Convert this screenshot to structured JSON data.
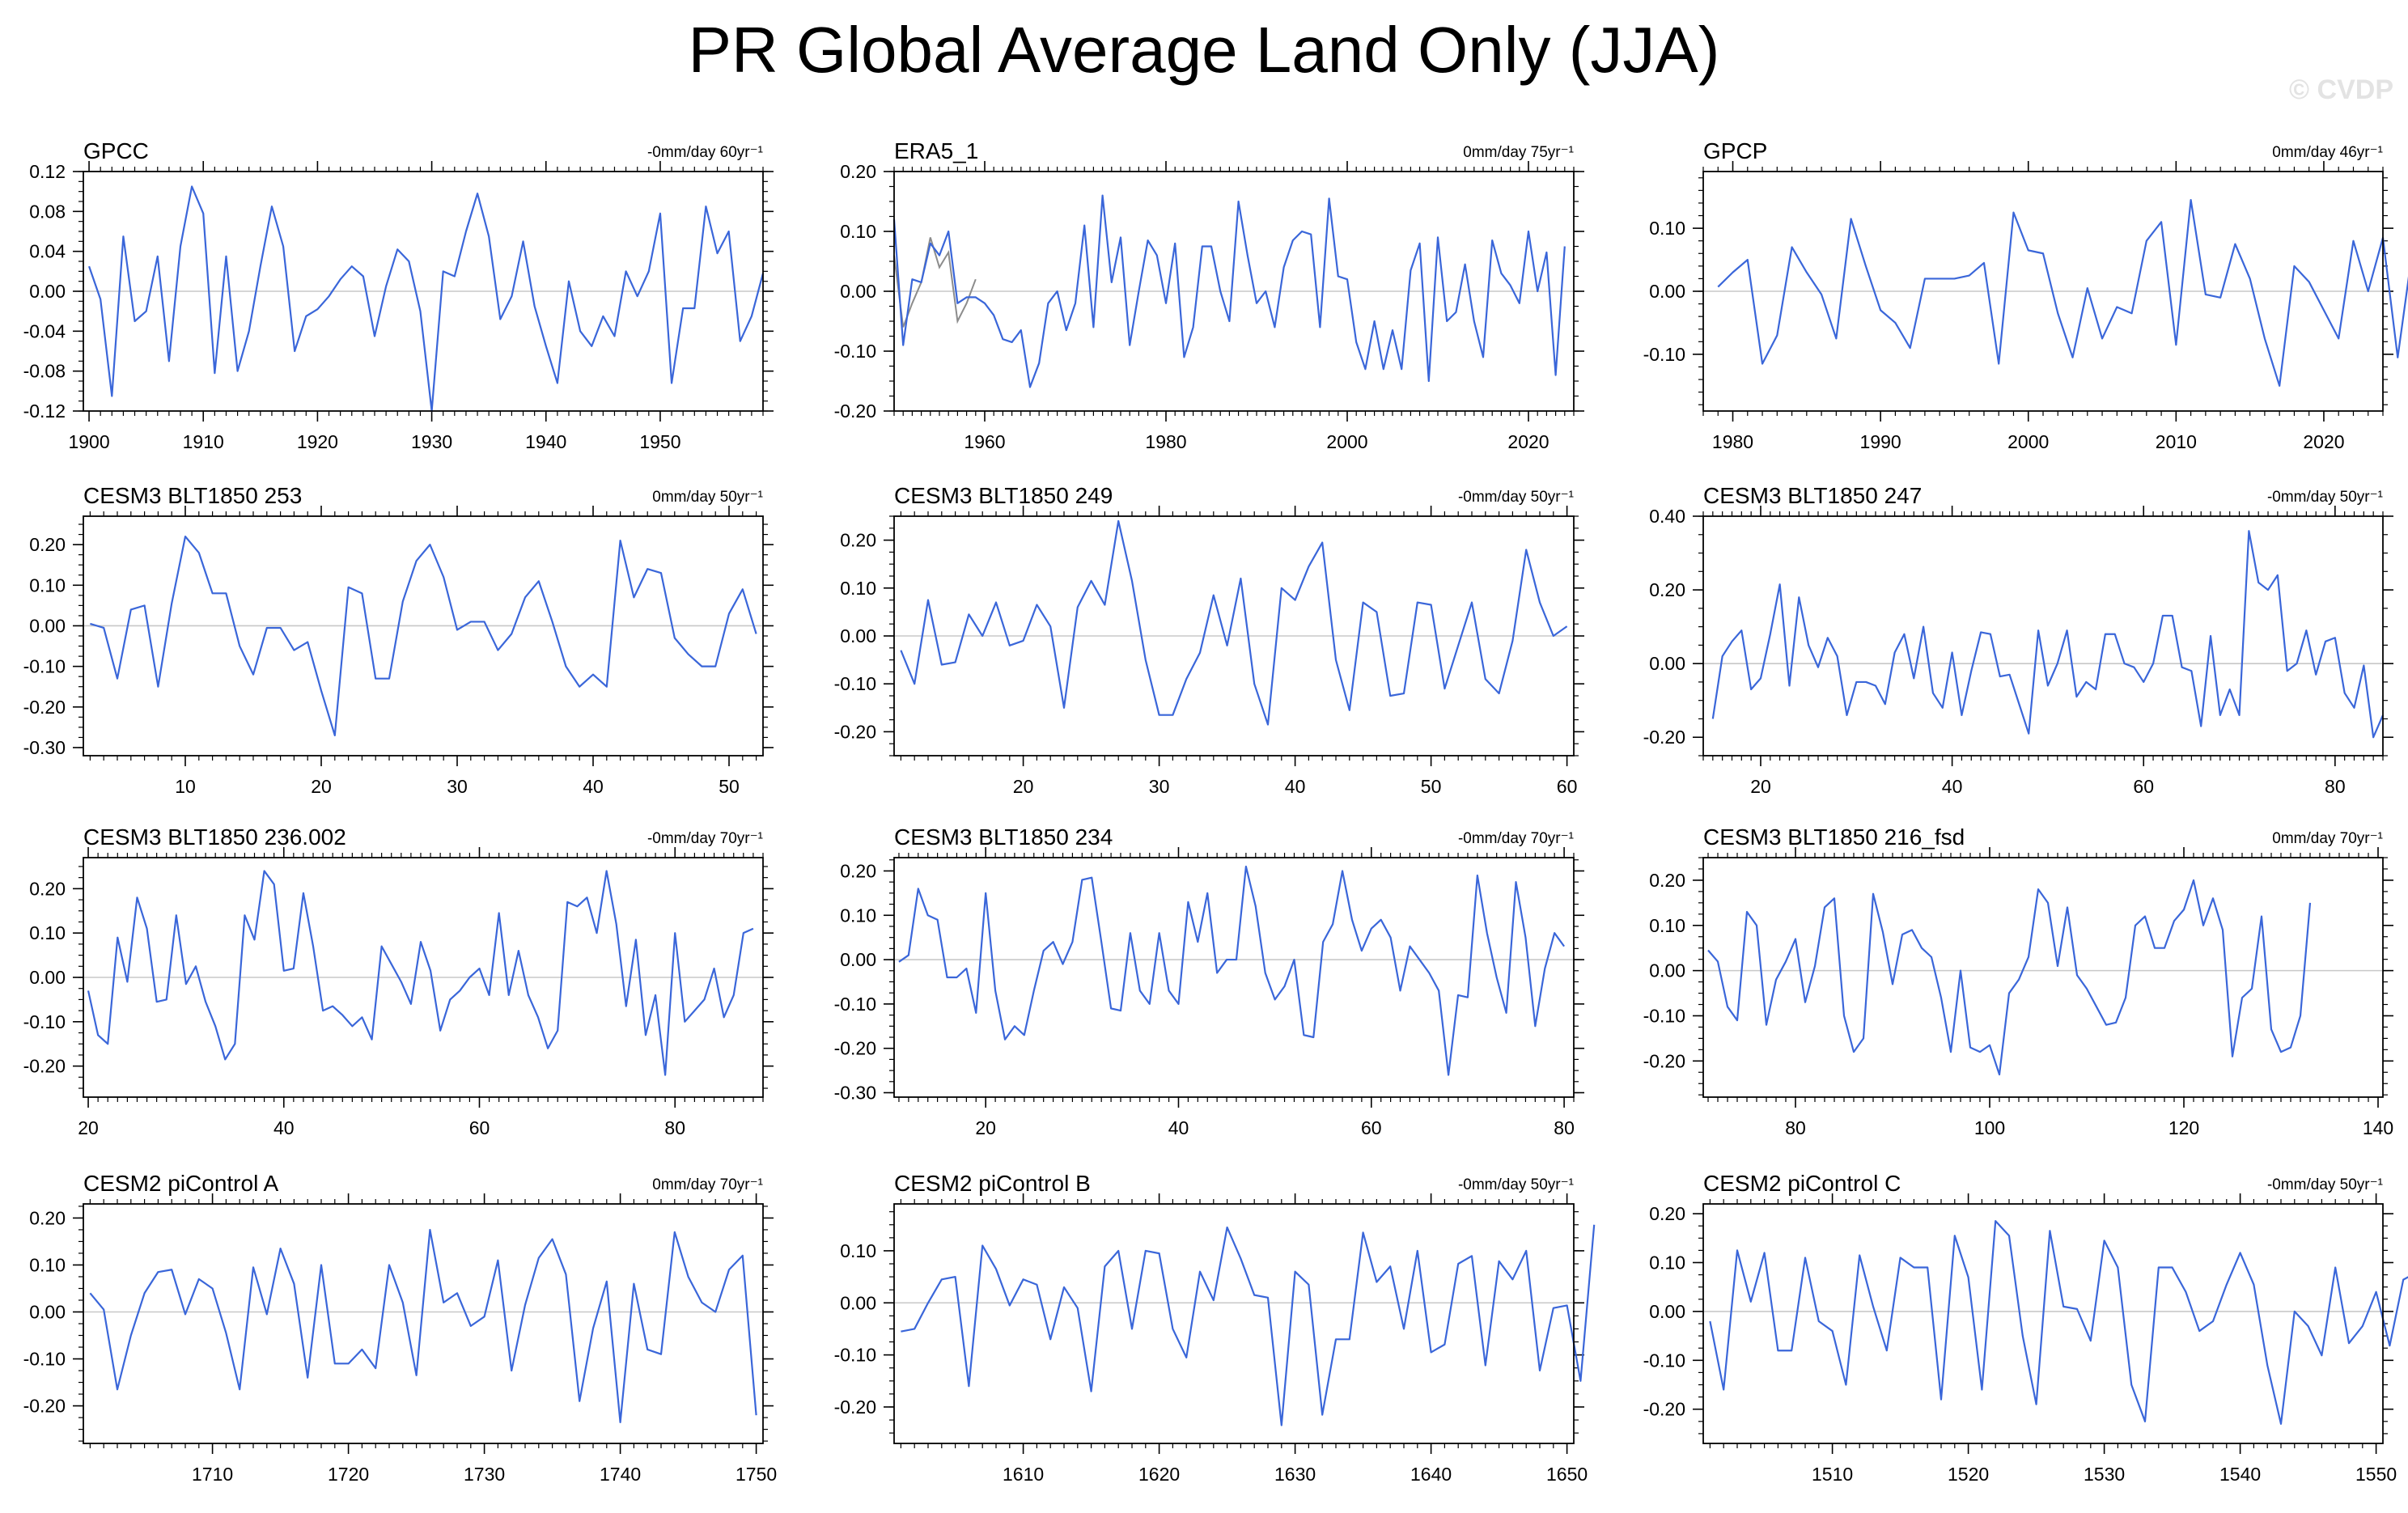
{
  "figure": {
    "title": "PR Global Average Land Only (JJA)",
    "watermark": "© CVDP",
    "colors": {
      "series": "#3a66d9",
      "overlay": "#8c8c8c",
      "zero_line": "#c8c8c8",
      "axis": "#000000"
    }
  },
  "chart_data": [
    {
      "type": "line",
      "title": "GPCC",
      "trend_label": "-0mm/day 60yr⁻¹",
      "x_start": 1900,
      "x_step": 1,
      "xlim": [
        1899.5,
        1959
      ],
      "ylim": [
        -0.12,
        0.12
      ],
      "xticks": [
        1900,
        1910,
        1920,
        1930,
        1940,
        1950
      ],
      "yticks": [
        -0.12,
        -0.08,
        -0.04,
        0.0,
        0.04,
        0.08,
        0.12
      ],
      "ydecimals": 2,
      "yminor": 0.01,
      "xlabel": "",
      "ylabel": "",
      "values": [
        0.025,
        -0.008,
        -0.105,
        0.055,
        -0.03,
        -0.02,
        0.035,
        -0.07,
        0.045,
        0.105,
        0.078,
        -0.082,
        0.035,
        -0.08,
        -0.04,
        0.025,
        0.085,
        0.045,
        -0.06,
        -0.025,
        -0.018,
        -0.005,
        0.012,
        0.025,
        0.015,
        -0.045,
        0.005,
        0.042,
        0.03,
        -0.02,
        -0.12,
        0.02,
        0.015,
        0.06,
        0.098,
        0.055,
        -0.028,
        -0.005,
        0.05,
        -0.015,
        -0.055,
        -0.092,
        0.01,
        -0.04,
        -0.055,
        -0.025,
        -0.045,
        0.02,
        -0.005,
        0.02,
        0.078,
        -0.092,
        -0.017,
        -0.017,
        0.085,
        0.038,
        0.06,
        -0.05,
        -0.025,
        0.018
      ]
    },
    {
      "type": "line",
      "title": "ERA5_1",
      "trend_label": "0mm/day 75yr⁻¹",
      "x_start": 1950,
      "x_step": 1,
      "xlim": [
        1950,
        2025
      ],
      "ylim": [
        -0.2,
        0.2
      ],
      "xticks": [
        1960,
        1980,
        2000,
        2020
      ],
      "yticks": [
        -0.2,
        -0.1,
        0.0,
        0.1,
        0.2
      ],
      "ydecimals": 2,
      "yminor": 0.025,
      "xlabel": "",
      "ylabel": "",
      "values": [
        0.12,
        -0.09,
        0.02,
        0.015,
        0.08,
        0.06,
        0.1,
        -0.02,
        -0.01,
        -0.01,
        -0.02,
        -0.04,
        -0.08,
        -0.085,
        -0.065,
        -0.16,
        -0.12,
        -0.02,
        0.0,
        -0.065,
        -0.02,
        0.11,
        -0.06,
        0.16,
        0.015,
        0.09,
        -0.09,
        0.0,
        0.085,
        0.06,
        -0.02,
        0.08,
        -0.11,
        -0.06,
        0.075,
        0.075,
        0.0,
        -0.05,
        0.15,
        0.06,
        -0.02,
        0.0,
        -0.06,
        0.04,
        0.085,
        0.1,
        0.095,
        -0.06,
        0.155,
        0.025,
        0.02,
        -0.085,
        -0.13,
        -0.05,
        -0.13,
        -0.065,
        -0.13,
        0.035,
        0.08,
        -0.15,
        0.09,
        -0.05,
        -0.035,
        0.045,
        -0.05,
        -0.11,
        0.085,
        0.03,
        0.01,
        -0.02,
        0.1,
        0.0,
        0.065,
        -0.14,
        0.075
      ],
      "overlay": {
        "x_start": 1950,
        "values": [
          0.06,
          -0.06,
          -0.02,
          0.015,
          0.09,
          0.04,
          0.065,
          -0.05,
          -0.02,
          0.02
        ]
      }
    },
    {
      "type": "line",
      "title": "GPCP",
      "trend_label": "0mm/day 46yr⁻¹",
      "x_start": 1979,
      "x_step": 1,
      "xlim": [
        1978,
        2024
      ],
      "ylim": [
        -0.19,
        0.19
      ],
      "xticks": [
        1980,
        1990,
        2000,
        2010,
        2020
      ],
      "yticks": [
        -0.1,
        0.0,
        0.1
      ],
      "ydecimals": 2,
      "yminor": 0.02,
      "xlabel": "",
      "ylabel": "",
      "values": [
        0.007,
        0.03,
        0.05,
        -0.115,
        -0.07,
        0.07,
        0.03,
        -0.005,
        -0.075,
        0.115,
        0.04,
        -0.03,
        -0.05,
        -0.09,
        0.02,
        0.02,
        0.02,
        0.025,
        0.045,
        -0.115,
        0.125,
        0.065,
        0.06,
        -0.035,
        -0.105,
        0.005,
        -0.075,
        -0.025,
        -0.035,
        0.08,
        0.11,
        -0.085,
        0.145,
        -0.005,
        -0.01,
        0.075,
        0.02,
        -0.075,
        -0.15,
        0.04,
        0.015,
        -0.03,
        -0.075,
        0.08,
        0.0,
        0.085,
        -0.105,
        0.065
      ]
    },
    {
      "type": "line",
      "title": "CESM3 BLT1850 253",
      "trend_label": "0mm/day 50yr⁻¹",
      "x_start": 3,
      "x_step": 1,
      "xlim": [
        2.5,
        52.5
      ],
      "ylim": [
        -0.32,
        0.27
      ],
      "xticks": [
        10,
        20,
        30,
        40,
        50
      ],
      "yticks": [
        -0.3,
        -0.2,
        -0.1,
        0.0,
        0.1,
        0.2
      ],
      "ydecimals": 2,
      "yminor": 0.025,
      "xlabel": "",
      "ylabel": "",
      "values": [
        0.005,
        -0.005,
        -0.13,
        0.04,
        0.05,
        -0.15,
        0.055,
        0.22,
        0.18,
        0.08,
        0.08,
        -0.05,
        -0.12,
        -0.005,
        -0.005,
        -0.06,
        -0.04,
        -0.16,
        -0.27,
        0.095,
        0.08,
        -0.13,
        -0.13,
        0.06,
        0.16,
        0.2,
        0.12,
        -0.01,
        0.01,
        0.01,
        -0.06,
        -0.02,
        0.07,
        0.11,
        0.01,
        -0.1,
        -0.15,
        -0.12,
        -0.15,
        0.21,
        0.07,
        0.14,
        0.13,
        -0.03,
        -0.07,
        -0.1,
        -0.1,
        0.03,
        0.09,
        -0.02
      ]
    },
    {
      "type": "line",
      "title": "CESM3 BLT1850 249",
      "trend_label": "-0mm/day 50yr⁻¹",
      "x_start": 11,
      "x_step": 1,
      "xlim": [
        10.5,
        60.5
      ],
      "ylim": [
        -0.25,
        0.25
      ],
      "xticks": [
        20,
        30,
        40,
        50,
        60
      ],
      "yticks": [
        -0.2,
        -0.1,
        0.0,
        0.1,
        0.2
      ],
      "ydecimals": 2,
      "yminor": 0.025,
      "xlabel": "",
      "ylabel": "",
      "values": [
        -0.03,
        -0.1,
        0.075,
        -0.06,
        -0.055,
        0.045,
        0.0,
        0.07,
        -0.02,
        -0.01,
        0.065,
        0.02,
        -0.15,
        0.06,
        0.115,
        0.065,
        0.24,
        0.115,
        -0.05,
        -0.165,
        -0.165,
        -0.09,
        -0.035,
        0.085,
        -0.02,
        0.12,
        -0.1,
        -0.185,
        0.1,
        0.075,
        0.145,
        0.195,
        -0.05,
        -0.155,
        0.07,
        0.05,
        -0.125,
        -0.12,
        0.07,
        0.065,
        -0.11,
        -0.02,
        0.07,
        -0.09,
        -0.12,
        -0.01,
        0.18,
        0.07,
        0.0,
        0.02
      ]
    },
    {
      "type": "line",
      "title": "CESM3 BLT1850 247",
      "trend_label": "-0mm/day 50yr⁻¹",
      "x_start": 15,
      "x_step": 1,
      "xlim": [
        14,
        85
      ],
      "ylim": [
        -0.25,
        0.4
      ],
      "xticks": [
        20,
        40,
        60,
        80
      ],
      "yticks": [
        -0.2,
        0.0,
        0.2,
        0.4
      ],
      "ydecimals": 2,
      "yminor": 0.05,
      "xlabel": "",
      "ylabel": "",
      "values": [
        -0.15,
        0.02,
        0.06,
        0.09,
        -0.07,
        -0.04,
        0.08,
        0.215,
        -0.06,
        0.18,
        0.05,
        -0.01,
        0.07,
        0.02,
        -0.14,
        -0.05,
        -0.05,
        -0.06,
        -0.11,
        0.03,
        0.08,
        -0.04,
        0.1,
        -0.08,
        -0.12,
        0.03,
        -0.14,
        -0.02,
        0.085,
        0.08,
        -0.035,
        -0.03,
        -0.11,
        -0.19,
        0.09,
        -0.06,
        0.0,
        0.09,
        -0.09,
        -0.05,
        -0.07,
        0.08,
        0.08,
        0.0,
        -0.01,
        -0.05,
        0.0,
        0.13,
        0.13,
        -0.01,
        -0.02,
        -0.17,
        0.075,
        -0.14,
        -0.07,
        -0.14,
        0.36,
        0.22,
        0.2,
        0.24,
        -0.02,
        0.0,
        0.09,
        -0.03,
        0.06,
        0.07,
        -0.08,
        -0.12,
        -0.005,
        -0.2,
        -0.14
      ]
    },
    {
      "type": "line",
      "title": "CESM3 BLT1850 236.002",
      "trend_label": "-0mm/day 70yr⁻¹",
      "x_start": 20,
      "x_step": 1,
      "xlim": [
        19.5,
        89
      ],
      "ylim": [
        -0.27,
        0.27
      ],
      "xticks": [
        20,
        40,
        60,
        80
      ],
      "yticks": [
        -0.2,
        -0.1,
        0.0,
        0.1,
        0.2
      ],
      "ydecimals": 2,
      "yminor": 0.025,
      "xlabel": "",
      "ylabel": "",
      "values": [
        -0.03,
        -0.13,
        -0.15,
        0.09,
        -0.01,
        0.18,
        0.11,
        -0.055,
        -0.05,
        0.14,
        -0.015,
        0.025,
        -0.055,
        -0.11,
        -0.185,
        -0.15,
        0.14,
        0.085,
        0.24,
        0.21,
        0.015,
        0.02,
        0.19,
        0.07,
        -0.075,
        -0.065,
        -0.085,
        -0.11,
        -0.09,
        -0.14,
        0.07,
        0.03,
        -0.01,
        -0.06,
        0.08,
        0.015,
        -0.12,
        -0.05,
        -0.03,
        0.0,
        0.02,
        -0.04,
        0.145,
        -0.04,
        0.06,
        -0.04,
        -0.09,
        -0.16,
        -0.12,
        0.17,
        0.16,
        0.18,
        0.1,
        0.24,
        0.12,
        -0.065,
        0.085,
        -0.13,
        -0.04,
        -0.22,
        0.1,
        -0.1,
        -0.075,
        -0.05,
        0.02,
        -0.09,
        -0.04,
        0.1,
        0.11
      ]
    },
    {
      "type": "line",
      "title": "CESM3 BLT1850 234",
      "trend_label": "-0mm/day 70yr⁻¹",
      "x_start": 11,
      "x_step": 1,
      "xlim": [
        10.5,
        81
      ],
      "ylim": [
        -0.31,
        0.23
      ],
      "xticks": [
        20,
        40,
        60,
        80
      ],
      "yticks": [
        -0.3,
        -0.2,
        -0.1,
        0.0,
        0.1,
        0.2
      ],
      "ydecimals": 2,
      "yminor": 0.025,
      "xlabel": "",
      "ylabel": "",
      "values": [
        -0.005,
        0.01,
        0.16,
        0.1,
        0.09,
        -0.04,
        -0.04,
        -0.02,
        -0.12,
        0.15,
        -0.07,
        -0.18,
        -0.15,
        -0.17,
        -0.07,
        0.02,
        0.04,
        -0.01,
        0.04,
        0.18,
        0.185,
        0.04,
        -0.11,
        -0.115,
        0.06,
        -0.07,
        -0.1,
        0.06,
        -0.07,
        -0.1,
        0.13,
        0.04,
        0.15,
        -0.03,
        0.0,
        0.0,
        0.21,
        0.12,
        -0.03,
        -0.09,
        -0.06,
        0.0,
        -0.17,
        -0.175,
        0.04,
        0.08,
        0.2,
        0.09,
        0.02,
        0.07,
        0.09,
        0.05,
        -0.07,
        0.03,
        0.0,
        -0.03,
        -0.07,
        -0.26,
        -0.08,
        -0.085,
        0.19,
        0.06,
        -0.04,
        -0.12,
        0.175,
        0.05,
        -0.15,
        -0.02,
        0.06,
        0.03
      ]
    },
    {
      "type": "line",
      "title": "CESM3 BLT1850 216_fsd",
      "trend_label": "0mm/day 70yr⁻¹",
      "x_start": 71,
      "x_step": 1,
      "xlim": [
        70.5,
        140.5
      ],
      "ylim": [
        -0.28,
        0.25
      ],
      "xticks": [
        80,
        100,
        120,
        140
      ],
      "yticks": [
        -0.2,
        -0.1,
        0.0,
        0.1,
        0.2
      ],
      "ydecimals": 2,
      "yminor": 0.025,
      "xlabel": "",
      "ylabel": "",
      "values": [
        0.045,
        0.02,
        -0.08,
        -0.11,
        0.13,
        0.1,
        -0.12,
        -0.02,
        0.02,
        0.07,
        -0.07,
        0.01,
        0.14,
        0.16,
        -0.1,
        -0.18,
        -0.15,
        0.17,
        0.085,
        -0.03,
        0.08,
        0.09,
        0.05,
        0.03,
        -0.06,
        -0.18,
        0.0,
        -0.17,
        -0.18,
        -0.165,
        -0.23,
        -0.05,
        -0.02,
        0.03,
        0.18,
        0.15,
        0.01,
        0.14,
        -0.01,
        -0.04,
        -0.08,
        -0.12,
        -0.115,
        -0.06,
        0.1,
        0.12,
        0.05,
        0.05,
        0.11,
        0.135,
        0.2,
        0.1,
        0.16,
        0.09,
        -0.19,
        -0.06,
        -0.04,
        0.12,
        -0.13,
        -0.18,
        -0.17,
        -0.1,
        0.15
      ]
    },
    {
      "type": "line",
      "title": "CESM2 piControl A",
      "trend_label": "0mm/day 70yr⁻¹",
      "x_start": 1701,
      "x_step": 1,
      "xlim": [
        1700.5,
        1750.5
      ],
      "ylim": [
        -0.28,
        0.23
      ],
      "xticks": [
        1710,
        1720,
        1730,
        1740,
        1750
      ],
      "yticks": [
        -0.2,
        -0.1,
        0.0,
        0.1,
        0.2
      ],
      "ydecimals": 2,
      "yminor": 0.025,
      "xlabel": "",
      "ylabel": "",
      "values": [
        0.04,
        0.005,
        -0.165,
        -0.05,
        0.04,
        0.085,
        0.09,
        -0.005,
        0.07,
        0.05,
        -0.045,
        -0.165,
        0.095,
        -0.005,
        0.135,
        0.06,
        -0.14,
        0.1,
        -0.11,
        -0.11,
        -0.08,
        -0.12,
        0.1,
        0.02,
        -0.135,
        0.175,
        0.02,
        0.04,
        -0.03,
        -0.01,
        0.11,
        -0.125,
        0.015,
        0.115,
        0.155,
        0.08,
        -0.19,
        -0.035,
        0.065,
        -0.235,
        0.06,
        -0.08,
        -0.09,
        0.17,
        0.075,
        0.02,
        0.0,
        0.09,
        0.12,
        -0.22
      ]
    },
    {
      "type": "line",
      "title": "CESM2 piControl B",
      "trend_label": "-0mm/day 50yr⁻¹",
      "x_start": 1601,
      "x_step": 1,
      "xlim": [
        1600.5,
        1650.5
      ],
      "ylim": [
        -0.27,
        0.19
      ],
      "xticks": [
        1610,
        1620,
        1630,
        1640,
        1650
      ],
      "yticks": [
        -0.2,
        -0.1,
        0.0,
        0.1
      ],
      "ydecimals": 2,
      "yminor": 0.025,
      "xlabel": "",
      "ylabel": "",
      "values": [
        -0.055,
        -0.05,
        0.0,
        0.045,
        0.05,
        -0.16,
        0.11,
        0.065,
        -0.005,
        0.045,
        0.035,
        -0.07,
        0.03,
        -0.01,
        -0.17,
        0.07,
        0.1,
        -0.05,
        0.1,
        0.095,
        -0.05,
        -0.105,
        0.06,
        0.005,
        0.145,
        0.085,
        0.015,
        0.01,
        -0.235,
        0.06,
        0.035,
        -0.215,
        -0.07,
        -0.07,
        0.135,
        0.04,
        0.07,
        -0.05,
        0.1,
        -0.095,
        -0.08,
        0.075,
        0.09,
        -0.12,
        0.08,
        0.045,
        0.1,
        -0.13,
        -0.01,
        -0.005,
        -0.15,
        0.15
      ]
    },
    {
      "type": "line",
      "title": "CESM2 piControl C",
      "trend_label": "-0mm/day 50yr⁻¹",
      "x_start": 1501,
      "x_step": 1,
      "xlim": [
        1500.5,
        1550.5
      ],
      "ylim": [
        -0.27,
        0.22
      ],
      "xticks": [
        1510,
        1520,
        1530,
        1540,
        1550
      ],
      "yticks": [
        -0.2,
        -0.1,
        0.0,
        0.1,
        0.2
      ],
      "ydecimals": 2,
      "yminor": 0.025,
      "xlabel": "",
      "ylabel": "",
      "values": [
        -0.02,
        -0.16,
        0.125,
        0.02,
        0.12,
        -0.08,
        -0.08,
        0.11,
        -0.02,
        -0.04,
        -0.15,
        0.115,
        0.01,
        -0.08,
        0.11,
        0.09,
        0.09,
        -0.18,
        0.155,
        0.07,
        -0.16,
        0.185,
        0.155,
        -0.05,
        -0.19,
        0.165,
        0.01,
        0.005,
        -0.06,
        0.145,
        0.09,
        -0.15,
        -0.225,
        0.09,
        0.09,
        0.04,
        -0.04,
        -0.02,
        0.055,
        0.12,
        0.055,
        -0.11,
        -0.23,
        0.0,
        -0.03,
        -0.09,
        0.09,
        -0.065,
        -0.03,
        0.04,
        -0.07,
        0.065,
        0.08
      ]
    }
  ]
}
